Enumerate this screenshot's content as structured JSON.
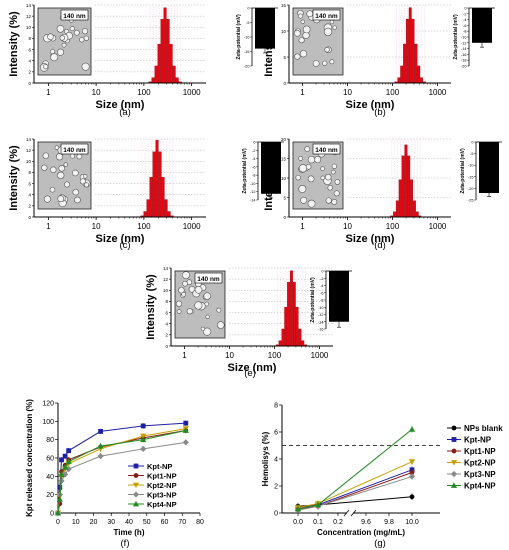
{
  "chart_data": [
    {
      "type": "bar",
      "panel": "(a)",
      "xlabel": "Size (nm)",
      "ylabel": "Intensity (%)",
      "scale_label": "140 nm",
      "x_scale": "log",
      "xlim": [
        0.5,
        2000
      ],
      "ylim": [
        0,
        14
      ],
      "x_ticks": [
        "1",
        "10",
        "100",
        "1000"
      ],
      "y_ticks": [
        "0",
        "2",
        "4",
        "6",
        "8",
        "10",
        "12",
        "14"
      ],
      "peak_size": 280,
      "peak_intensity": 13.5,
      "bar_color": "#e30613",
      "inset": {
        "type": "bar",
        "ylabel": "Zeta-potential (mV)",
        "ylim": [
          -20,
          0
        ],
        "ticks": [
          "0",
          "-5",
          "-10",
          "-15",
          "-20"
        ],
        "value": -14,
        "error": 1.5
      }
    },
    {
      "type": "bar",
      "panel": "(b)",
      "xlabel": "Size (nm)",
      "ylabel": "Intensity (%)",
      "scale_label": "140 nm",
      "x_scale": "log",
      "xlim": [
        0.5,
        2000
      ],
      "ylim": [
        0,
        15
      ],
      "x_ticks": [
        "1",
        "10",
        "100",
        "1000"
      ],
      "y_ticks": [
        "0",
        "5",
        "10",
        "15"
      ],
      "peak_size": 250,
      "peak_intensity": 14.5,
      "bar_color": "#e30613",
      "inset": {
        "type": "bar",
        "ylabel": "Zeta-potential (mV)",
        "ylim": [
          -20,
          0
        ],
        "ticks": [
          "0",
          "-2",
          "-4",
          "-6",
          "-8",
          "-10",
          "-12",
          "-14",
          "-16",
          "-18",
          "-20"
        ],
        "value": -12,
        "error": 1.5
      }
    },
    {
      "type": "bar",
      "panel": "(c)",
      "xlabel": "Size (nm)",
      "ylabel": "Intensity (%)",
      "scale_label": "140 nm",
      "x_scale": "log",
      "xlim": [
        0.5,
        2000
      ],
      "ylim": [
        0,
        14
      ],
      "x_ticks": [
        "1",
        "10",
        "100",
        "1000"
      ],
      "y_ticks": [
        "0",
        "2",
        "4",
        "6",
        "8",
        "10",
        "12",
        "14"
      ],
      "peak_size": 190,
      "peak_intensity": 13.8,
      "bar_color": "#e30613",
      "inset": {
        "type": "bar",
        "ylabel": "Zeta-potential (mV)",
        "ylim": [
          -14,
          0
        ],
        "ticks": [
          "0",
          "-2",
          "-4",
          "-6",
          "-8",
          "-10",
          "-12",
          "-14"
        ],
        "value": -12.5,
        "error": 1
      }
    },
    {
      "type": "bar",
      "panel": "(d)",
      "xlabel": "Size (nm)",
      "ylabel": "Intensity (%)",
      "scale_label": "140 nm",
      "x_scale": "log",
      "xlim": [
        0.5,
        2000
      ],
      "ylim": [
        0,
        20
      ],
      "x_ticks": [
        "1",
        "10",
        "100",
        "1000"
      ],
      "y_ticks": [
        "0",
        "5",
        "10",
        "15",
        "20"
      ],
      "peak_size": 200,
      "peak_intensity": 18.5,
      "bar_color": "#e30613",
      "inset": {
        "type": "bar",
        "ylabel": "Zeta-potential (mV)",
        "ylim": [
          -25,
          0
        ],
        "ticks": [
          "0",
          "-5",
          "-10",
          "-15",
          "-20",
          "-25"
        ],
        "value": -22,
        "error": 1.5
      }
    },
    {
      "type": "bar",
      "panel": "(e)",
      "xlabel": "Size (nm)",
      "ylabel": "Intensity (%)",
      "scale_label": "140 nm",
      "x_scale": "log",
      "xlim": [
        0.5,
        2000
      ],
      "ylim": [
        0,
        14
      ],
      "x_ticks": [
        "1",
        "10",
        "100",
        "1000"
      ],
      "y_ticks": [
        "0",
        "2",
        "4",
        "6",
        "8",
        "10",
        "12",
        "14"
      ],
      "peak_size": 240,
      "peak_intensity": 13.5,
      "bar_color": "#e30613",
      "inset": {
        "type": "bar",
        "ylabel": "Zeta-potential (mV)",
        "ylim": [
          -16,
          0
        ],
        "ticks": [
          "0",
          "-2",
          "-4",
          "-6",
          "-8",
          "-10",
          "-12",
          "-14",
          "-16"
        ],
        "value": -14,
        "error": 1.5
      }
    },
    {
      "type": "line",
      "panel": "(f)",
      "xlabel": "Time (h)",
      "ylabel": "Kpt released concentration (%)",
      "xlim": [
        0,
        80
      ],
      "ylim": [
        0,
        120
      ],
      "x_ticks": [
        "0",
        "10",
        "20",
        "30",
        "40",
        "50",
        "60",
        "70",
        "80"
      ],
      "y_ticks": [
        "0",
        "20",
        "40",
        "60",
        "80",
        "100",
        "120"
      ],
      "x": [
        0,
        1,
        2,
        4,
        6,
        24,
        48,
        72
      ],
      "legend_position": "lower-right",
      "series": [
        {
          "name": "Kpt-NP",
          "color": "#1f1fa8",
          "marker": "square",
          "values": [
            0,
            28,
            58,
            62,
            68,
            89,
            95,
            98
          ]
        },
        {
          "name": "Kpt1-NP",
          "color": "#8b1a1a",
          "marker": "circle",
          "values": [
            0,
            10,
            45,
            52,
            58,
            72,
            82,
            90
          ]
        },
        {
          "name": "Kpt2-NP",
          "color": "#c8a000",
          "marker": "triangle-down",
          "values": [
            0,
            18,
            40,
            48,
            54,
            70,
            84,
            92
          ]
        },
        {
          "name": "Kpt3-NP",
          "color": "#8a8a8a",
          "marker": "diamond",
          "values": [
            0,
            20,
            35,
            42,
            48,
            62,
            70,
            77
          ]
        },
        {
          "name": "Kpt4-NP",
          "color": "#228b22",
          "marker": "triangle-up",
          "values": [
            0,
            15,
            42,
            50,
            56,
            73,
            80,
            90
          ]
        }
      ]
    },
    {
      "type": "line",
      "panel": "(g)",
      "xlabel": "Concentration (mg/mL)",
      "ylabel": "Hemolisys (%)",
      "x_ticks": [
        "0.0",
        "0.1",
        "0.2",
        "9.6",
        "9.8",
        "10.0"
      ],
      "x_break": "between 0.2 and 9.6",
      "ylim": [
        0,
        8
      ],
      "y_ticks": [
        "0",
        "2",
        "4",
        "6",
        "8"
      ],
      "x": [
        0.0,
        0.1,
        10.0
      ],
      "threshold": 5,
      "legend_position": "right",
      "series": [
        {
          "name": "NPs blank",
          "color": "#000000",
          "marker": "circle",
          "values": [
            0.5,
            0.6,
            1.2
          ]
        },
        {
          "name": "Kpt-NP",
          "color": "#1f1fa8",
          "marker": "square",
          "values": [
            0.4,
            0.6,
            3.2
          ]
        },
        {
          "name": "Kpt1-NP",
          "color": "#8b1a1a",
          "marker": "circle",
          "values": [
            0.3,
            0.5,
            3.0
          ]
        },
        {
          "name": "Kpt2-NP",
          "color": "#c8a000",
          "marker": "triangle-down",
          "values": [
            0.4,
            0.7,
            3.8
          ]
        },
        {
          "name": "Kpt3-NP",
          "color": "#8a8a8a",
          "marker": "diamond",
          "values": [
            0.2,
            0.5,
            2.7
          ]
        },
        {
          "name": "Kpt4-NP",
          "color": "#228b22",
          "marker": "triangle-up",
          "values": [
            0.3,
            0.6,
            6.2
          ]
        }
      ]
    }
  ]
}
